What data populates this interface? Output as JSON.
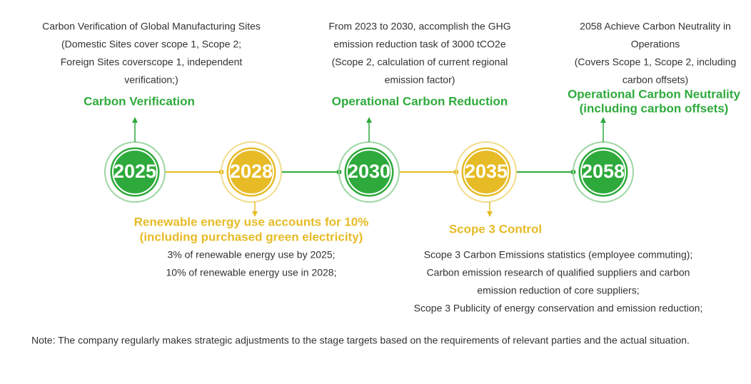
{
  "nodes": [
    {
      "year": "2025",
      "title": [
        "Carbon Verification"
      ],
      "description": [
        "Carbon Verification of Global Manufacturing Sites",
        "(Domestic Sites cover scope 1, Scope 2;",
        "Foreign Sites coverscope 1, independent",
        "verification;)"
      ]
    },
    {
      "year": "2028",
      "title": [
        "Renewable energy use accounts for 10%",
        "(including purchased green electricity)"
      ],
      "description": [
        "3% of renewable energy use by 2025;",
        "10% of renewable energy use in 2028;"
      ]
    },
    {
      "year": "2030",
      "title": [
        "Operational Carbon Reduction"
      ],
      "description": [
        "From 2023 to 2030, accomplish the GHG",
        "emission reduction task of 3000 tCO2e",
        "(Scope 2, calculation of current regional",
        "emission factor)"
      ]
    },
    {
      "year": "2035",
      "title": [
        "Scope 3 Control"
      ],
      "description": [
        "Scope 3 Carbon Emissions statistics (employee commuting);",
        "Carbon emission research of qualified suppliers and carbon",
        "emission reduction of core suppliers;",
        "Scope 3 Publicity of energy conservation and emission reduction;"
      ]
    },
    {
      "year": "2058",
      "title": [
        "Operational Carbon Neutrality",
        "(including carbon offsets)"
      ],
      "description": [
        "2058 Achieve Carbon Neutrality in",
        "Operations",
        "(Covers Scope 1, Scope 2, including",
        "carbon offsets)"
      ]
    }
  ],
  "note": "Note: The company regularly makes strategic adjustments to the stage targets based on the requirements of relevant parties and the actual situation."
}
